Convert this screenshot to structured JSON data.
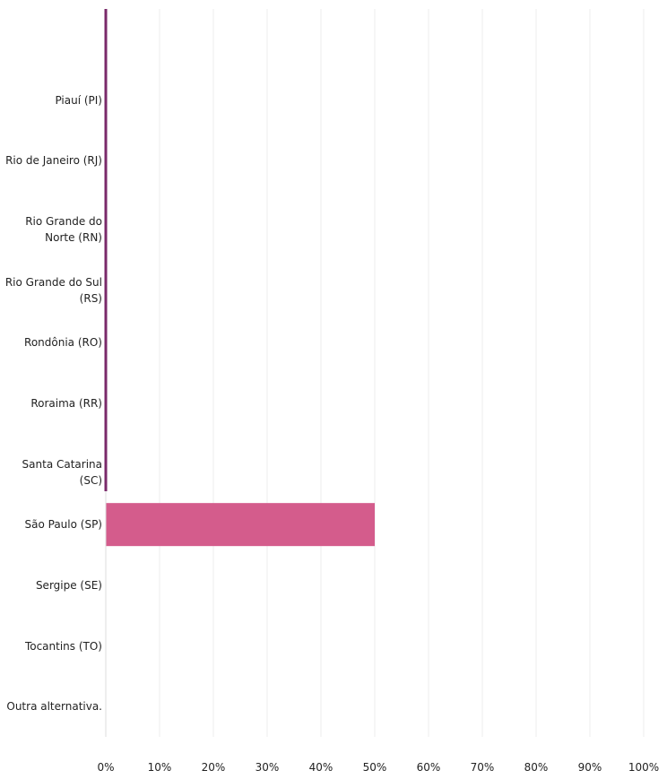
{
  "chart_data": {
    "type": "bar",
    "orientation": "horizontal",
    "categories": [
      "",
      "Piauí (PI)",
      "Rio de Janeiro (RJ)",
      "Rio Grande do Norte (RN)",
      "Rio Grande do Sul (RS)",
      "Rondônia (RO)",
      "Roraima (RR)",
      "Santa Catarina (SC)",
      "São Paulo (SP)",
      "Sergipe (SE)",
      "Tocantins (TO)",
      "Outra alternativa."
    ],
    "values": [
      0,
      0,
      0,
      0,
      0,
      0,
      0,
      0,
      50,
      0,
      0,
      0
    ],
    "xlim": [
      0,
      100
    ],
    "x_ticks": [
      "0%",
      "10%",
      "20%",
      "30%",
      "40%",
      "50%",
      "60%",
      "70%",
      "80%",
      "90%",
      "100%"
    ],
    "grid": true,
    "colors": {
      "bar": "#d45c8c",
      "axis": "#7a2a6a",
      "grid": "#eeeeee"
    }
  }
}
